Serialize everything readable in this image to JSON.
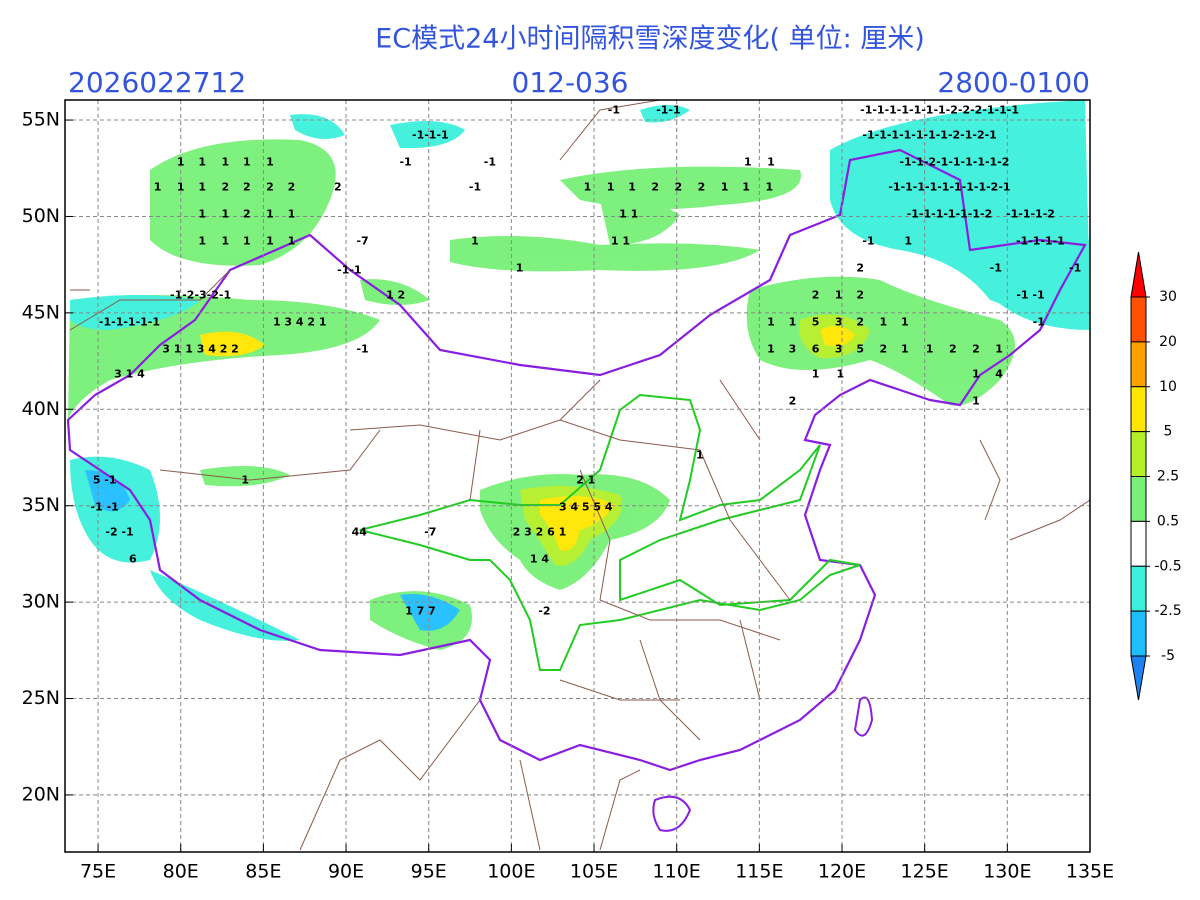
{
  "header": {
    "title": "EC模式24小时间隔积雪深度变化( 单位: 厘米)",
    "run": "2026022712",
    "forecast": "012-036",
    "period": "2800-0100"
  },
  "axes": {
    "xlim": [
      73,
      135
    ],
    "ylim": [
      17.04,
      56.04
    ],
    "xticks": [
      {
        "value": 75,
        "label": "75E"
      },
      {
        "value": 80,
        "label": "80E"
      },
      {
        "value": 85,
        "label": "85E"
      },
      {
        "value": 90,
        "label": "90E"
      },
      {
        "value": 95,
        "label": "95E"
      },
      {
        "value": 100,
        "label": "100E"
      },
      {
        "value": 105,
        "label": "105E"
      },
      {
        "value": 110,
        "label": "110E"
      },
      {
        "value": 115,
        "label": "115E"
      },
      {
        "value": 120,
        "label": "120E"
      },
      {
        "value": 125,
        "label": "125E"
      },
      {
        "value": 130,
        "label": "130E"
      },
      {
        "value": 135,
        "label": "135E"
      }
    ],
    "yticks": [
      {
        "value": 20,
        "label": "20N"
      },
      {
        "value": 25,
        "label": "25N"
      },
      {
        "value": 30,
        "label": "30N"
      },
      {
        "value": 35,
        "label": "35N"
      },
      {
        "value": 40,
        "label": "40N"
      },
      {
        "value": 45,
        "label": "45N"
      },
      {
        "value": 50,
        "label": "50N"
      },
      {
        "value": 55,
        "label": "55N"
      }
    ],
    "grid": true
  },
  "colorbar": {
    "ticks": [
      30,
      20,
      10,
      5,
      2.5,
      0.5,
      -0.5,
      -2.5,
      -5
    ],
    "colors": [
      "#ff0000",
      "#ff5000",
      "#ffa000",
      "#ffe600",
      "#b4f028",
      "#78f078",
      "#ffffff",
      "#3cf0dc",
      "#1ebeff",
      "#1e82f0"
    ]
  },
  "contour_labels": [
    {
      "label": "1",
      "lon": 80.0,
      "lat": 52.8
    },
    {
      "label": "1",
      "lon": 81.3,
      "lat": 52.8
    },
    {
      "label": "1",
      "lon": 82.7,
      "lat": 52.8
    },
    {
      "label": "1",
      "lon": 84.0,
      "lat": 52.8
    },
    {
      "label": "1",
      "lon": 85.4,
      "lat": 52.8
    },
    {
      "label": "1",
      "lon": 78.6,
      "lat": 51.5
    },
    {
      "label": "1",
      "lon": 80.0,
      "lat": 51.5
    },
    {
      "label": "1",
      "lon": 81.3,
      "lat": 51.5
    },
    {
      "label": "2",
      "lon": 82.7,
      "lat": 51.5
    },
    {
      "label": "2",
      "lon": 84.0,
      "lat": 51.5
    },
    {
      "label": "2",
      "lon": 85.4,
      "lat": 51.5
    },
    {
      "label": "2",
      "lon": 86.7,
      "lat": 51.5
    },
    {
      "label": "2",
      "lon": 89.5,
      "lat": 51.5
    },
    {
      "label": "1",
      "lon": 81.3,
      "lat": 50.1
    },
    {
      "label": "1",
      "lon": 82.7,
      "lat": 50.1
    },
    {
      "label": "2",
      "lon": 84.0,
      "lat": 50.1
    },
    {
      "label": "1",
      "lon": 85.4,
      "lat": 50.1
    },
    {
      "label": "1",
      "lon": 86.7,
      "lat": 50.1
    },
    {
      "label": "1",
      "lon": 81.3,
      "lat": 48.7
    },
    {
      "label": "1",
      "lon": 82.7,
      "lat": 48.7
    },
    {
      "label": "1",
      "lon": 84.0,
      "lat": 48.7
    },
    {
      "label": "1",
      "lon": 85.4,
      "lat": 48.7
    },
    {
      "label": "1",
      "lon": 86.7,
      "lat": 48.7
    },
    {
      "label": "-7",
      "lon": 91.0,
      "lat": 48.7
    },
    {
      "label": "-1-1",
      "lon": 90.2,
      "lat": 47.2
    },
    {
      "label": "-1-1-1",
      "lon": 95.1,
      "lat": 54.2
    },
    {
      "label": "-1",
      "lon": 93.6,
      "lat": 52.8
    },
    {
      "label": "-1",
      "lon": 98.7,
      "lat": 52.8
    },
    {
      "label": "-1",
      "lon": 97.8,
      "lat": 51.5
    },
    {
      "label": "1",
      "lon": 97.8,
      "lat": 48.7
    },
    {
      "label": "1",
      "lon": 100.5,
      "lat": 47.3
    },
    {
      "label": "-1",
      "lon": 106.2,
      "lat": 55.5
    },
    {
      "label": "-1-1",
      "lon": 109.5,
      "lat": 55.5
    },
    {
      "label": "1",
      "lon": 104.6,
      "lat": 51.5
    },
    {
      "label": "1",
      "lon": 106.0,
      "lat": 51.5
    },
    {
      "label": "1",
      "lon": 107.3,
      "lat": 51.5
    },
    {
      "label": "2",
      "lon": 108.7,
      "lat": 51.5
    },
    {
      "label": "2",
      "lon": 110.1,
      "lat": 51.5
    },
    {
      "label": "2",
      "lon": 111.5,
      "lat": 51.5
    },
    {
      "label": "1",
      "lon": 112.9,
      "lat": 51.5
    },
    {
      "label": "1",
      "lon": 114.2,
      "lat": 51.5
    },
    {
      "label": "1",
      "lon": 115.6,
      "lat": 51.5
    },
    {
      "label": "1",
      "lon": 114.3,
      "lat": 52.8
    },
    {
      "label": "1",
      "lon": 115.7,
      "lat": 52.8
    },
    {
      "label": "1 1",
      "lon": 107.1,
      "lat": 50.1
    },
    {
      "label": "1 1",
      "lon": 106.6,
      "lat": 48.7
    },
    {
      "label": "-1-1-1-1-1-1-1-2-2-2-1-1-1",
      "lon": 125.9,
      "lat": 55.5
    },
    {
      "label": "-1-1-1-1-1-1-1-2-1-2-1",
      "lon": 125.3,
      "lat": 54.2
    },
    {
      "label": "-1-1-2-1-1-1-1-1-2",
      "lon": 126.8,
      "lat": 52.8
    },
    {
      "label": "-1-1-1-1-1-1-1-1-2-1",
      "lon": 126.5,
      "lat": 51.5
    },
    {
      "label": "-1-1-1-1-1-1-2",
      "lon": 126.5,
      "lat": 50.1
    },
    {
      "label": "-1-1-1-2",
      "lon": 131.4,
      "lat": 50.1
    },
    {
      "label": "-1-1-1-1",
      "lon": 132.0,
      "lat": 48.7
    },
    {
      "label": "-1",
      "lon": 121.6,
      "lat": 48.7
    },
    {
      "label": "1",
      "lon": 124.0,
      "lat": 48.7
    },
    {
      "label": "-1",
      "lon": 129.3,
      "lat": 47.3
    },
    {
      "label": "-1",
      "lon": 134.1,
      "lat": 47.3
    },
    {
      "label": "-1 -1",
      "lon": 131.4,
      "lat": 45.9
    },
    {
      "label": "-1",
      "lon": 131.9,
      "lat": 44.5
    },
    {
      "label": "2",
      "lon": 121.1,
      "lat": 47.3
    },
    {
      "label": "2",
      "lon": 118.4,
      "lat": 45.9
    },
    {
      "label": "1",
      "lon": 119.8,
      "lat": 45.9
    },
    {
      "label": "2",
      "lon": 121.1,
      "lat": 45.9
    },
    {
      "label": "1",
      "lon": 115.7,
      "lat": 44.5
    },
    {
      "label": "1",
      "lon": 117.0,
      "lat": 44.5
    },
    {
      "label": "5",
      "lon": 118.4,
      "lat": 44.5
    },
    {
      "label": "3",
      "lon": 119.8,
      "lat": 44.5
    },
    {
      "label": "2",
      "lon": 121.1,
      "lat": 44.5
    },
    {
      "label": "1",
      "lon": 122.5,
      "lat": 44.5
    },
    {
      "label": "1",
      "lon": 123.8,
      "lat": 44.5
    },
    {
      "label": "1",
      "lon": 115.7,
      "lat": 43.1
    },
    {
      "label": "3",
      "lon": 117.0,
      "lat": 43.1
    },
    {
      "label": "6",
      "lon": 118.4,
      "lat": 43.1
    },
    {
      "label": "3",
      "lon": 119.8,
      "lat": 43.1
    },
    {
      "label": "5",
      "lon": 121.1,
      "lat": 43.1
    },
    {
      "label": "2",
      "lon": 122.5,
      "lat": 43.1
    },
    {
      "label": "1",
      "lon": 123.8,
      "lat": 43.1
    },
    {
      "label": "1",
      "lon": 125.3,
      "lat": 43.1
    },
    {
      "label": "2",
      "lon": 126.7,
      "lat": 43.1
    },
    {
      "label": "2",
      "lon": 128.1,
      "lat": 43.1
    },
    {
      "label": "1",
      "lon": 129.5,
      "lat": 43.1
    },
    {
      "label": "1",
      "lon": 128.1,
      "lat": 41.8
    },
    {
      "label": "4",
      "lon": 129.5,
      "lat": 41.8
    },
    {
      "label": "1",
      "lon": 128.1,
      "lat": 40.4
    },
    {
      "label": "2",
      "lon": 117.0,
      "lat": 40.4
    },
    {
      "label": "1",
      "lon": 118.4,
      "lat": 41.8
    },
    {
      "label": "1",
      "lon": 119.9,
      "lat": 41.8
    },
    {
      "label": "-1-2-3-2-1",
      "lon": 81.2,
      "lat": 45.9
    },
    {
      "label": "-1-1-1-1-1",
      "lon": 76.9,
      "lat": 44.5
    },
    {
      "label": "1 3 4 2 1",
      "lon": 87.2,
      "lat": 44.5
    },
    {
      "label": "3 1 1 3 4 2 2",
      "lon": 81.2,
      "lat": 43.1
    },
    {
      "label": "1 2",
      "lon": 93.0,
      "lat": 45.9
    },
    {
      "label": "-1",
      "lon": 91.0,
      "lat": 43.1
    },
    {
      "label": "3 1 4",
      "lon": 76.9,
      "lat": 41.8
    },
    {
      "label": "5 -1",
      "lon": 75.4,
      "lat": 36.3
    },
    {
      "label": "-1 -1",
      "lon": 75.4,
      "lat": 34.9
    },
    {
      "label": "-2 -1",
      "lon": 76.3,
      "lat": 33.6
    },
    {
      "label": "6",
      "lon": 77.1,
      "lat": 32.2
    },
    {
      "label": "1",
      "lon": 83.9,
      "lat": 36.3
    },
    {
      "label": "2 1",
      "lon": 104.5,
      "lat": 36.3
    },
    {
      "label": "3 4 5 5 4",
      "lon": 104.5,
      "lat": 34.9
    },
    {
      "label": "2 3 2 6 1",
      "lon": 101.7,
      "lat": 33.6
    },
    {
      "label": "1 4",
      "lon": 101.7,
      "lat": 32.2
    },
    {
      "label": "-2",
      "lon": 102.0,
      "lat": 29.5
    },
    {
      "label": "-7",
      "lon": 95.1,
      "lat": 33.6
    },
    {
      "label": "44",
      "lon": 90.8,
      "lat": 33.6
    },
    {
      "label": "1 7 7",
      "lon": 94.5,
      "lat": 29.5
    },
    {
      "label": "1",
      "lon": 111.4,
      "lat": 37.6
    }
  ]
}
